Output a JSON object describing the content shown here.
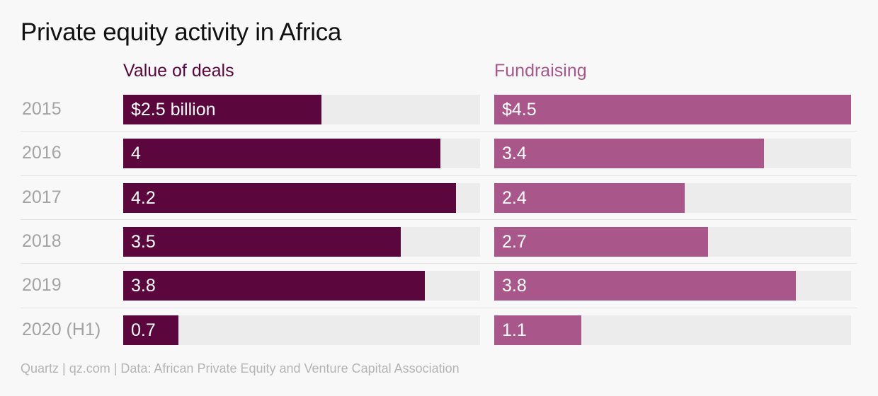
{
  "title": "Private equity activity in Africa",
  "footer": "Quartz | qz.com | Data:  African Private Equity and Venture Capital Association",
  "colors": {
    "deals": "#5b063c",
    "fundraising": "#a9578a",
    "track": "#ececec"
  },
  "chart_data": {
    "type": "bar",
    "orientation": "horizontal",
    "title": "Private equity activity in Africa",
    "categories": [
      "2015",
      "2016",
      "2017",
      "2018",
      "2019",
      "2020 (H1)"
    ],
    "xlim": [
      0,
      4.5
    ],
    "series": [
      {
        "name": "Value of deals",
        "values": [
          2.5,
          4,
          4.2,
          3.5,
          3.8,
          0.7
        ],
        "labels": [
          "$2.5 billion",
          "4",
          "4.2",
          "3.5",
          "3.8",
          "0.7"
        ]
      },
      {
        "name": "Fundraising",
        "values": [
          4.5,
          3.4,
          2.4,
          2.7,
          3.8,
          1.1
        ],
        "labels": [
          "$4.5",
          "3.4",
          "2.4",
          "2.7",
          "3.8",
          "1.1"
        ]
      }
    ]
  }
}
